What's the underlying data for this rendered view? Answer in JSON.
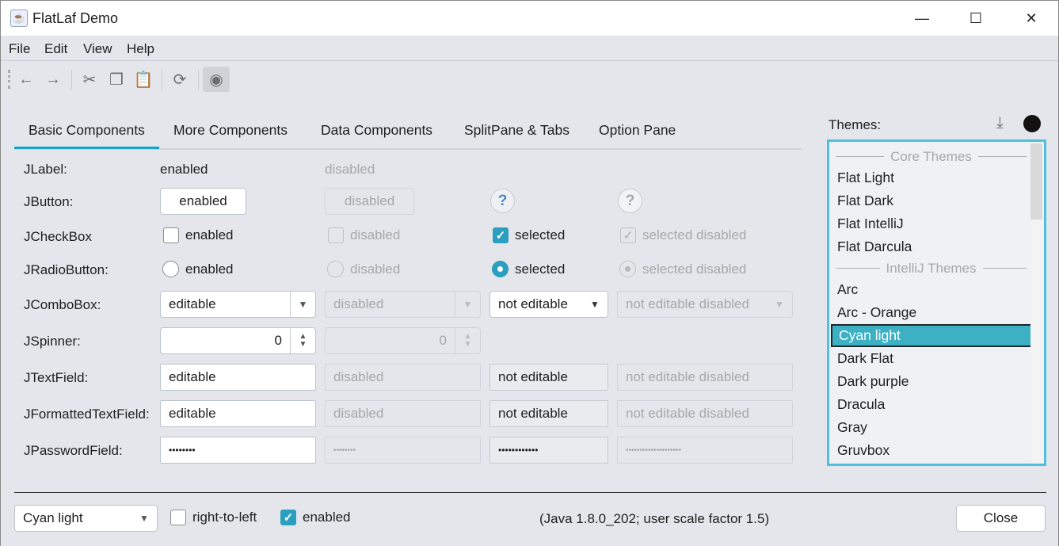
{
  "window": {
    "title": "FlatLaf Demo",
    "minimize": "—",
    "maximize": "☐",
    "close": "✕"
  },
  "menu": [
    "File",
    "Edit",
    "View",
    "Help"
  ],
  "toolbar": {
    "icons": [
      "arrow-left-icon",
      "arrow-right-icon",
      "cut-icon",
      "copy-icon",
      "paste-icon",
      "refresh-icon",
      "eye-icon"
    ]
  },
  "tabs": [
    "Basic Components",
    "More Components",
    "Data Components",
    "SplitPane & Tabs",
    "Option Pane"
  ],
  "active_tab": "Basic Components",
  "rows": {
    "label": {
      "name": "JLabel:",
      "c1": "enabled",
      "c2": "disabled"
    },
    "button": {
      "name": "JButton:",
      "c1": "enabled",
      "c2": "disabled",
      "help": "?"
    },
    "checkbox": {
      "name": "JCheckBox",
      "c1": "enabled",
      "c2": "disabled",
      "c3": "selected",
      "c4": "selected disabled"
    },
    "radio": {
      "name": "JRadioButton:",
      "c1": "enabled",
      "c2": "disabled",
      "c3": "selected",
      "c4": "selected disabled"
    },
    "combo": {
      "name": "JComboBox:",
      "c1": "editable",
      "c2": "disabled",
      "c3": "not editable",
      "c4": "not editable disabled"
    },
    "spinner": {
      "name": "JSpinner:",
      "c1": "0",
      "c2": "0"
    },
    "text": {
      "name": "JTextField:",
      "c1": "editable",
      "c2": "disabled",
      "c3": "not editable",
      "c4": "not editable disabled"
    },
    "formatted": {
      "name": "JFormattedTextField:",
      "c1": "editable",
      "c2": "disabled",
      "c3": "not editable",
      "c4": "not editable disabled"
    },
    "password": {
      "name": "JPasswordField:",
      "c1": "••••••••",
      "c2": "••••••••",
      "c3": "••••••••••••",
      "c4": "••••••••••••••••••••"
    }
  },
  "themes": {
    "label": "Themes:",
    "groups": [
      "Core Themes",
      "IntelliJ Themes"
    ],
    "core": [
      "Flat Light",
      "Flat Dark",
      "Flat IntelliJ",
      "Flat Darcula"
    ],
    "intellij": [
      "Arc",
      "Arc - Orange",
      "Cyan light",
      "Dark Flat",
      "Dark purple",
      "Dracula",
      "Gray",
      "Gruvbox"
    ],
    "selected": "Cyan light",
    "scroll_position": 0
  },
  "bottom": {
    "theme_combo": "Cyan light",
    "rtl": "right-to-left",
    "rtl_checked": false,
    "enabled": "enabled",
    "enabled_checked": true,
    "info": "(Java 1.8.0_202;  user scale factor 1.5)",
    "close": "Close"
  },
  "colors": {
    "accent": "#0ea6cc",
    "selection": "#3db0c3",
    "background": "#e4e6eb"
  }
}
